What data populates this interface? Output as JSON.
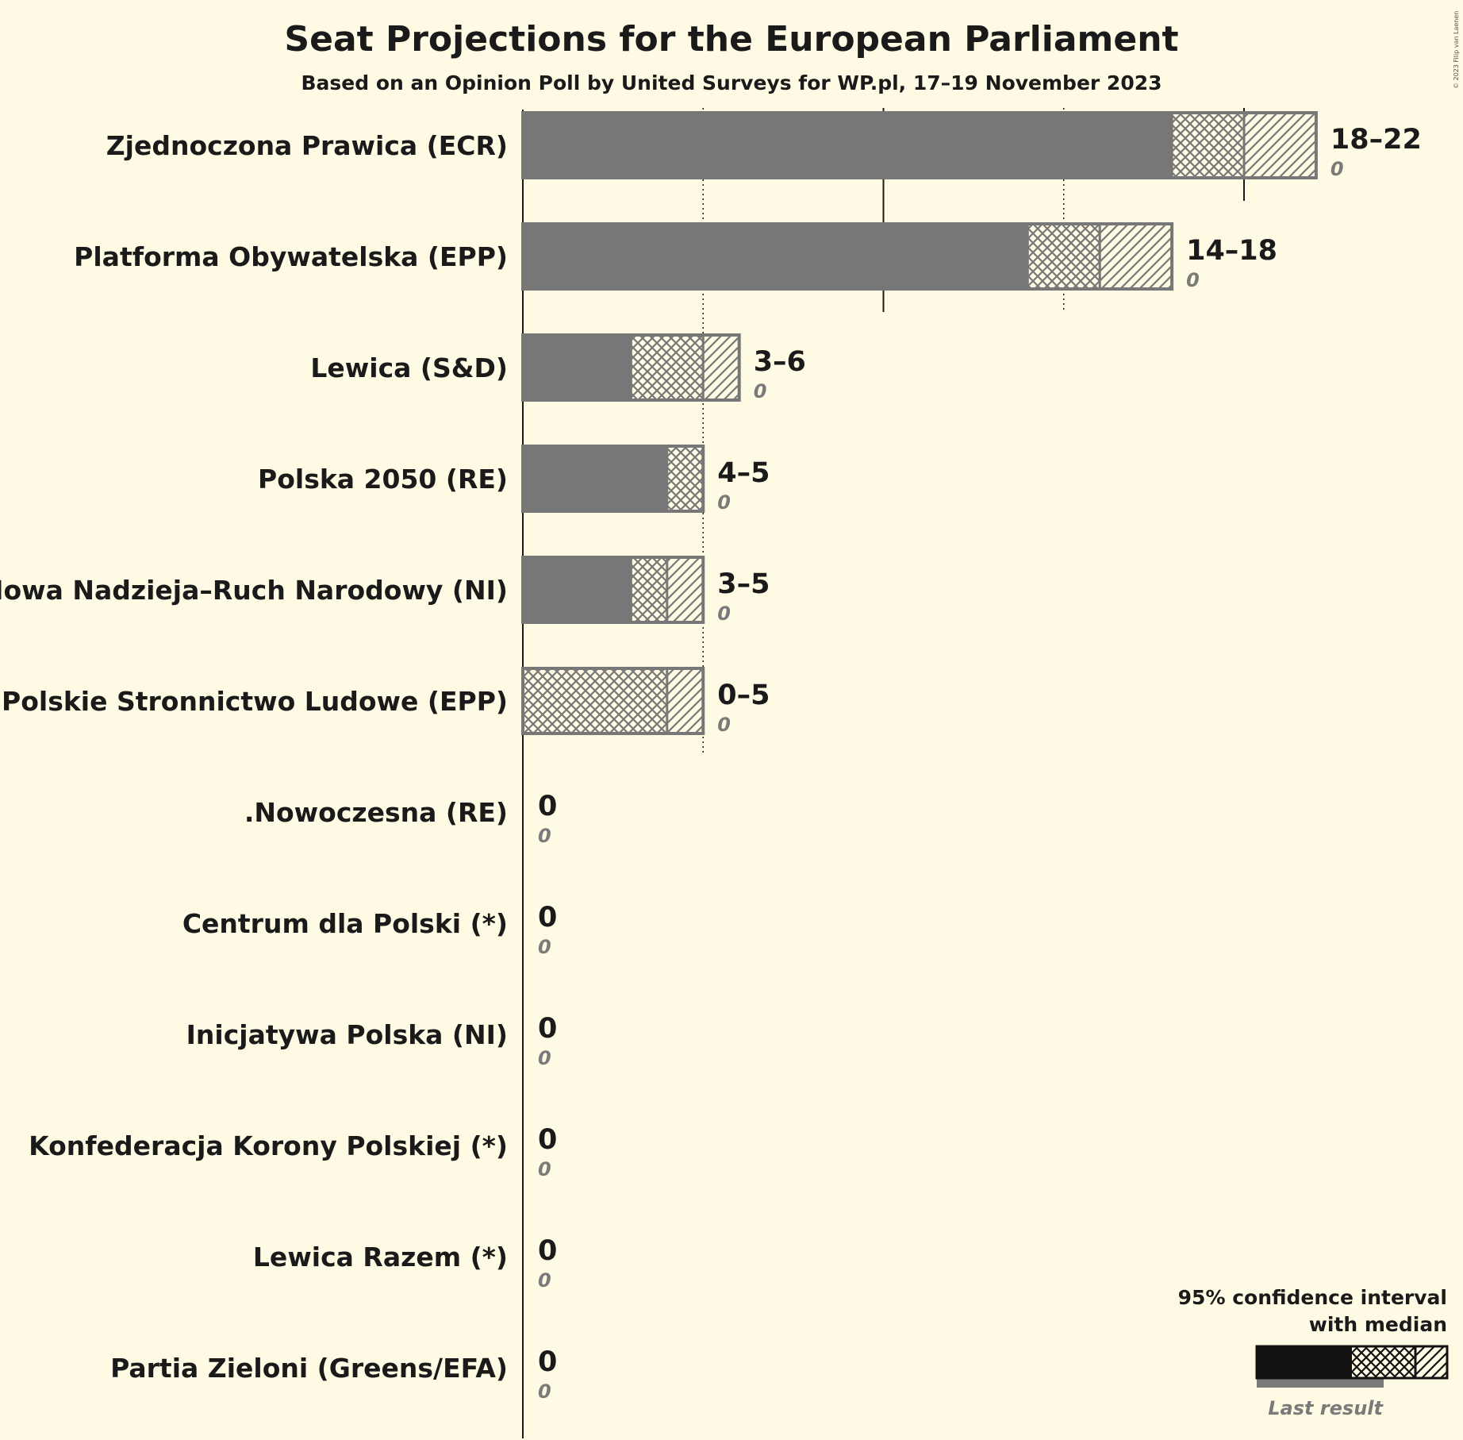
{
  "title": "Seat Projections for the European Parliament",
  "subtitle": "Based on an Opinion Poll by United Surveys for WP.pl, 17–19 November 2023",
  "copyright": "© 2023 Filip van Laenen",
  "colors": {
    "background": "#fefae3",
    "bar": "#777777",
    "legend_bar": "#111111",
    "last_result": "#7a7a7a",
    "text": "#1a1a1a"
  },
  "legend": {
    "line1": "95% confidence interval",
    "line2": "with median",
    "last_result": "Last result"
  },
  "chart_data": {
    "type": "bar",
    "orientation": "horizontal",
    "title": "Seat Projections for the European Parliament",
    "subtitle": "Based on an Opinion Poll by United Surveys for WP.pl, 17–19 November 2023",
    "xlim": [
      0,
      22
    ],
    "gridlines": [
      5,
      10,
      15,
      20
    ],
    "series": [
      {
        "name": "Zjednoczona Prawica (ECR)",
        "low": 18,
        "median": 20,
        "high": 22,
        "label": "18–22",
        "last_result": 0
      },
      {
        "name": "Platforma Obywatelska (EPP)",
        "low": 14,
        "median": 16,
        "high": 18,
        "label": "14–18",
        "last_result": 0
      },
      {
        "name": "Lewica (S&D)",
        "low": 3,
        "median": 5,
        "high": 6,
        "label": "3–6",
        "last_result": 0
      },
      {
        "name": "Polska 2050 (RE)",
        "low": 4,
        "median": 5,
        "high": 5,
        "label": "4–5",
        "last_result": 0
      },
      {
        "name": "Nowa Nadzieja–Ruch Narodowy (NI)",
        "low": 3,
        "median": 4,
        "high": 5,
        "label": "3–5",
        "last_result": 0
      },
      {
        "name": "Polskie Stronnictwo Ludowe (EPP)",
        "low": 0,
        "median": 4,
        "high": 5,
        "label": "0–5",
        "last_result": 0
      },
      {
        "name": ".Nowoczesna (RE)",
        "low": 0,
        "median": 0,
        "high": 0,
        "label": "0",
        "last_result": 0
      },
      {
        "name": "Centrum dla Polski (*)",
        "low": 0,
        "median": 0,
        "high": 0,
        "label": "0",
        "last_result": 0
      },
      {
        "name": "Inicjatywa Polska (NI)",
        "low": 0,
        "median": 0,
        "high": 0,
        "label": "0",
        "last_result": 0
      },
      {
        "name": "Konfederacja Korony Polskiej (*)",
        "low": 0,
        "median": 0,
        "high": 0,
        "label": "0",
        "last_result": 0
      },
      {
        "name": "Lewica Razem (*)",
        "low": 0,
        "median": 0,
        "high": 0,
        "label": "0",
        "last_result": 0
      },
      {
        "name": "Partia Zieloni (Greens/EFA)",
        "low": 0,
        "median": 0,
        "high": 0,
        "label": "0",
        "last_result": 0
      }
    ]
  }
}
